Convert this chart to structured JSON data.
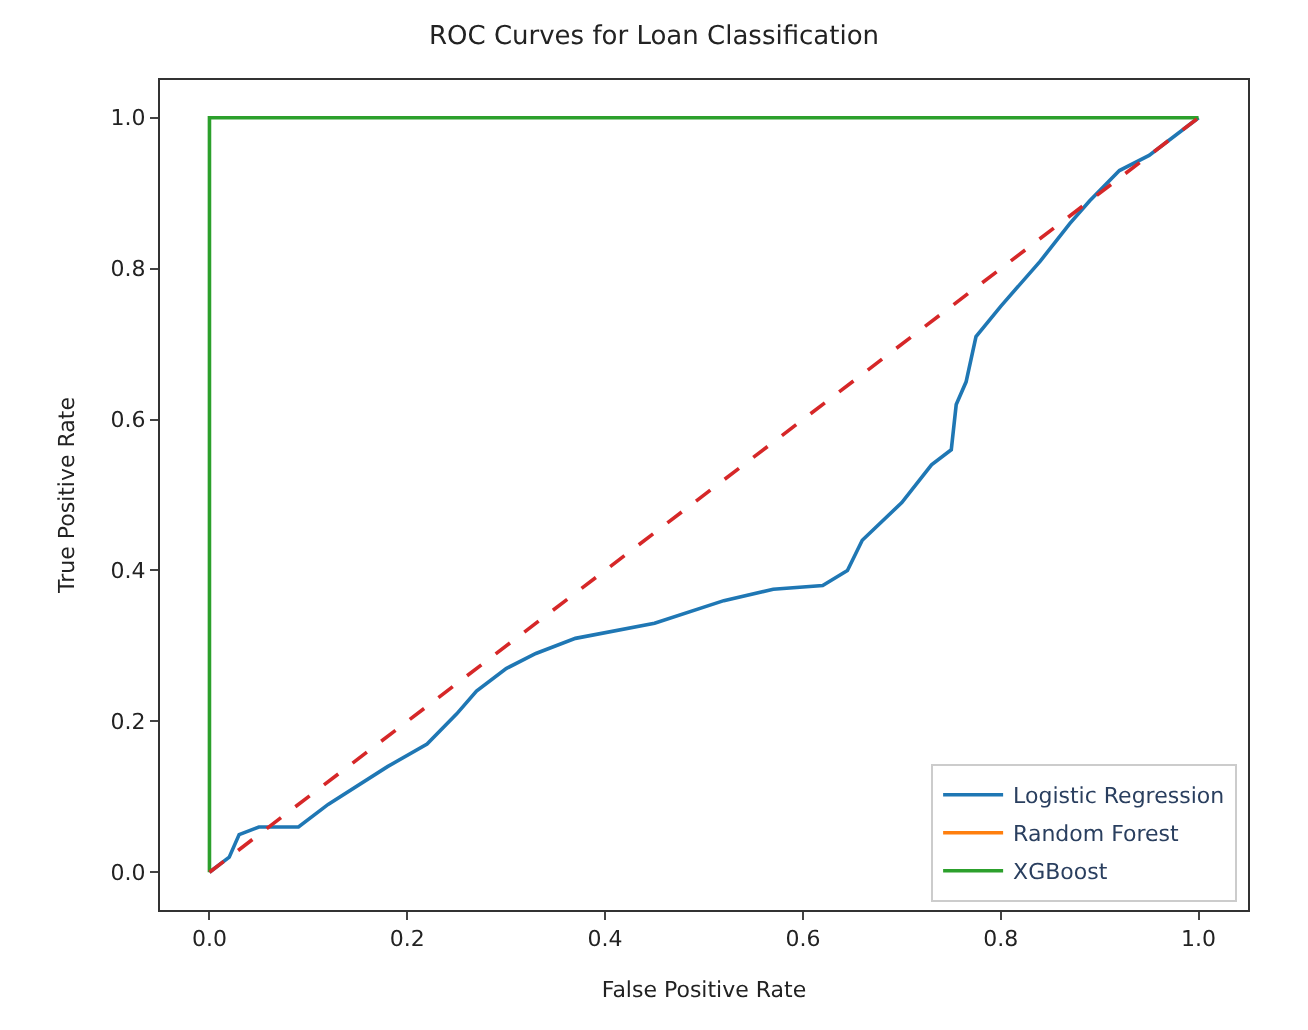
{
  "chart_data": {
    "type": "line",
    "title": "ROC Curves for Loan Classification",
    "xlabel": "False Positive Rate",
    "ylabel": "True Positive Rate",
    "xlim": [
      -0.05,
      1.05
    ],
    "ylim": [
      -0.05,
      1.05
    ],
    "xticks": [
      {
        "value": 0,
        "label": "0.0"
      },
      {
        "value": 0.2,
        "label": "0.2"
      },
      {
        "value": 0.4,
        "label": "0.4"
      },
      {
        "value": 0.6,
        "label": "0.6"
      },
      {
        "value": 0.8,
        "label": "0.8"
      },
      {
        "value": 1,
        "label": "1.0"
      }
    ],
    "yticks": [
      {
        "value": 0,
        "label": "0.0"
      },
      {
        "value": 0.2,
        "label": "0.2"
      },
      {
        "value": 0.4,
        "label": "0.4"
      },
      {
        "value": 0.6,
        "label": "0.6"
      },
      {
        "value": 0.8,
        "label": "0.8"
      },
      {
        "value": 1,
        "label": "1.0"
      }
    ],
    "legend": "bottom right",
    "marker": "none",
    "series": [
      {
        "name": "Logistic Regression",
        "color": "#1f77b4",
        "line_style": "solid",
        "x": [
          0,
          0.02,
          0.03,
          0.05,
          0.09,
          0.12,
          0.18,
          0.22,
          0.25,
          0.27,
          0.3,
          0.33,
          0.37,
          0.45,
          0.52,
          0.57,
          0.62,
          0.645,
          0.66,
          0.7,
          0.73,
          0.75,
          0.755,
          0.765,
          0.775,
          0.8,
          0.84,
          0.87,
          0.89,
          0.92,
          0.95,
          1
        ],
        "values": [
          0,
          0.02,
          0.05,
          0.06,
          0.06,
          0.09,
          0.14,
          0.17,
          0.21,
          0.24,
          0.27,
          0.29,
          0.31,
          0.33,
          0.36,
          0.375,
          0.38,
          0.4,
          0.44,
          0.49,
          0.54,
          0.56,
          0.62,
          0.65,
          0.71,
          0.75,
          0.81,
          0.86,
          0.89,
          0.93,
          0.95,
          1
        ]
      },
      {
        "name": "Random Forest",
        "color": "#ff7f0e",
        "line_style": "solid",
        "values": [
          null
        ]
      },
      {
        "name": "XGBoost",
        "color": "#2ca02c",
        "line_style": "solid",
        "x": [
          0,
          0,
          1
        ],
        "values": [
          0,
          1,
          1
        ]
      },
      {
        "color": "#d62728",
        "line_style": "dashed",
        "x": [
          0,
          1
        ],
        "values": [
          0,
          1
        ]
      }
    ]
  }
}
